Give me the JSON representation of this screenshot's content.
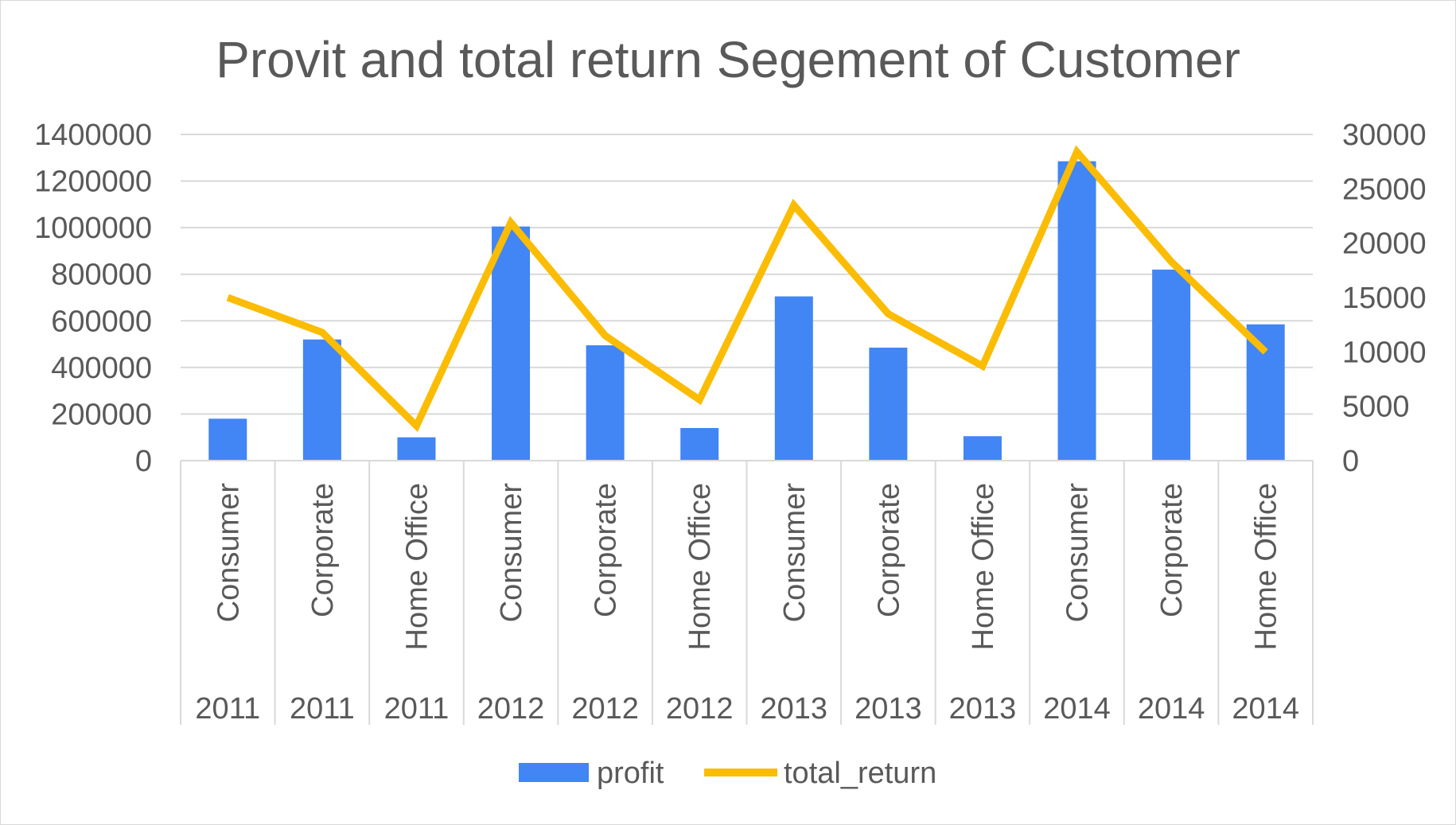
{
  "chart_data": {
    "type": "bar",
    "title": "Provit and total return Segement of Customer",
    "categories": [
      "Consumer",
      "Corporate",
      "Home Office",
      "Consumer",
      "Corporate",
      "Home Office",
      "Consumer",
      "Corporate",
      "Home Office",
      "Consumer",
      "Corporate",
      "Home Office"
    ],
    "years": [
      "2011",
      "2011",
      "2011",
      "2012",
      "2012",
      "2012",
      "2013",
      "2013",
      "2013",
      "2014",
      "2014",
      "2014"
    ],
    "series": [
      {
        "name": "profit",
        "type": "bar",
        "axis": "left",
        "color": "#4285f4",
        "values": [
          180000,
          520000,
          100000,
          1005000,
          495000,
          140000,
          705000,
          485000,
          105000,
          1285000,
          820000,
          585000
        ]
      },
      {
        "name": "total_return",
        "type": "line",
        "axis": "right",
        "color": "#fbbc04",
        "values": [
          15000,
          11800,
          3200,
          21900,
          11500,
          5600,
          23500,
          13500,
          8700,
          28400,
          18300,
          10000
        ]
      }
    ],
    "y_left": {
      "min": 0,
      "max": 1400000,
      "step": 200000,
      "ticks": [
        "0",
        "200000",
        "400000",
        "600000",
        "800000",
        "1000000",
        "1200000",
        "1400000"
      ]
    },
    "y_right": {
      "min": 0,
      "max": 30000,
      "step": 5000,
      "ticks": [
        "0",
        "5000",
        "10000",
        "15000",
        "20000",
        "25000",
        "30000"
      ]
    },
    "grid": true,
    "legend_position": "bottom"
  }
}
